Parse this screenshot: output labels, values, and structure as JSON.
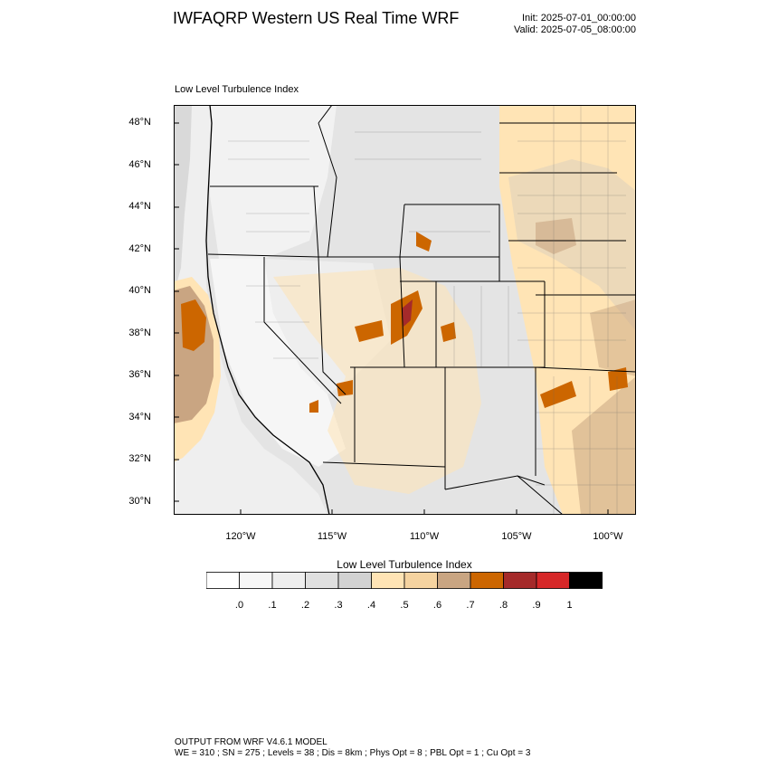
{
  "header": {
    "title": "IWFAQRP Western US Real Time WRF",
    "init": "Init: 2025-07-01_00:00:00",
    "valid": "Valid: 2025-07-05_08:00:00"
  },
  "plot": {
    "label": "Low Level Turbulence Index"
  },
  "axes": {
    "lat_labels": [
      "48°N",
      "46°N",
      "44°N",
      "42°N",
      "40°N",
      "38°N",
      "36°N",
      "34°N",
      "32°N",
      "30°N"
    ],
    "lon_labels": [
      "120°W",
      "115°W",
      "110°W",
      "105°W",
      "100°W"
    ]
  },
  "colorbar": {
    "title": "Low Level Turbulence Index",
    "ticks": [
      ".0",
      ".1",
      ".2",
      ".3",
      ".4",
      ".5",
      ".6",
      ".7",
      ".8",
      ".9",
      "1"
    ],
    "colors": [
      "#ffffff",
      "#f7f7f7",
      "#eeeeee",
      "#e0e0e0",
      "#d2d2d2",
      "#ffe4b5",
      "#f5d3a0",
      "#c9a582",
      "#cc6600",
      "#a52a2a",
      "#d62728",
      "#000000"
    ]
  },
  "footer": {
    "line1": "OUTPUT FROM WRF V4.6.1 MODEL",
    "line2": "WE = 310 ; SN = 275 ; Levels = 38 ; Dis = 8km ; Phys Opt = 8 ; PBL Opt = 1 ; Cu Opt = 3"
  }
}
